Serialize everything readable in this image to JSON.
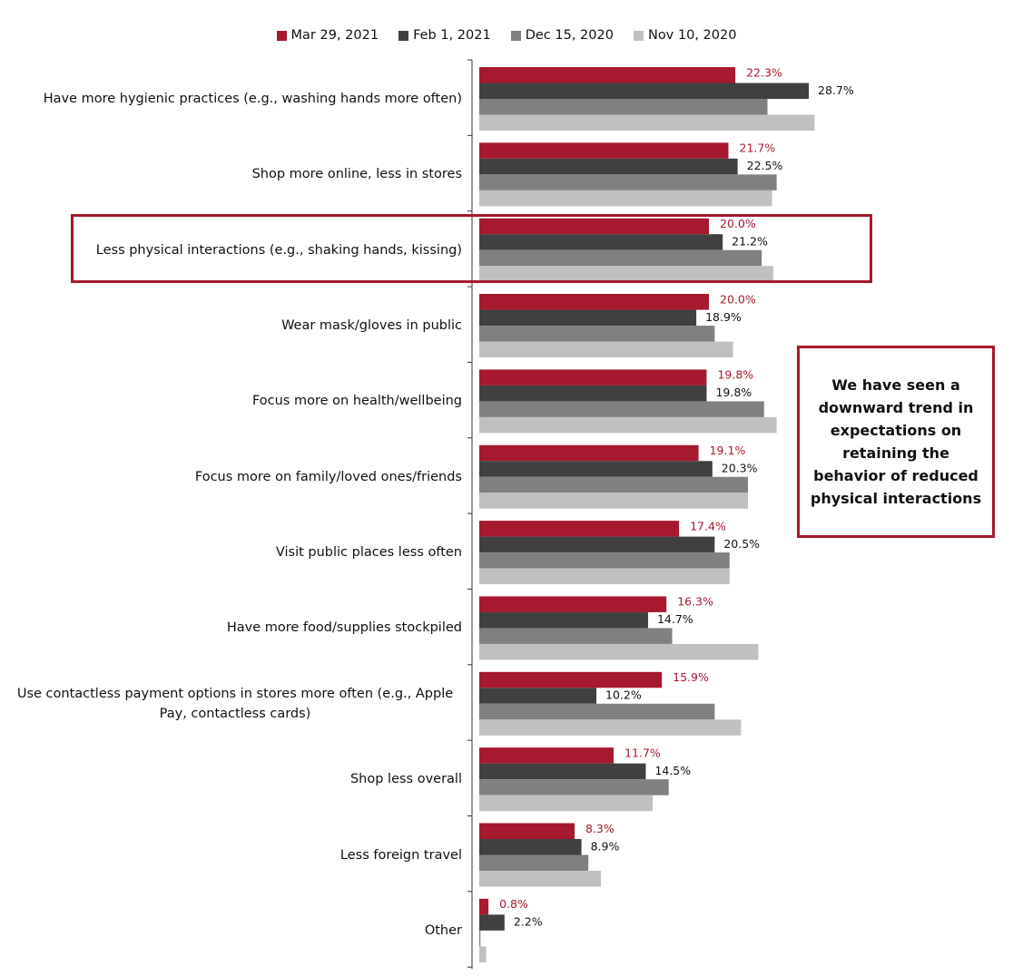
{
  "chart_data": {
    "type": "bar",
    "orientation": "horizontal",
    "categories": [
      "Have more hygienic practices (e.g., washing hands more often)",
      "Shop more online, less in stores",
      "Less physical interactions (e.g., shaking hands, kissing)",
      "Wear mask/gloves in public",
      "Focus more on health/wellbeing",
      "Focus more on family/loved ones/friends",
      "Visit public places less often",
      "Have more food/supplies stockpiled",
      "Use contactless payment options in stores more often (e.g., Apple Pay, contactless cards)",
      "Shop less overall",
      "Less foreign travel",
      "Other"
    ],
    "series": [
      {
        "name": "Mar 29, 2021",
        "color": "#a6192e",
        "values": [
          22.3,
          21.7,
          20.0,
          20.0,
          19.8,
          19.1,
          17.4,
          16.3,
          15.9,
          11.7,
          8.3,
          0.8
        ],
        "value_labels": [
          "22.3%",
          "21.7%",
          "20.0%",
          "20.0%",
          "19.8%",
          "19.1%",
          "17.4%",
          "16.3%",
          "15.9%",
          "11.7%",
          "8.3%",
          "0.8%"
        ]
      },
      {
        "name": "Feb 1, 2021",
        "color": "#404040",
        "values": [
          28.7,
          22.5,
          21.2,
          18.9,
          19.8,
          20.3,
          20.5,
          14.7,
          10.2,
          14.5,
          8.9,
          2.2
        ],
        "value_labels": [
          "28.7%",
          "22.5%",
          "21.2%",
          "18.9%",
          "19.8%",
          "20.3%",
          "20.5%",
          "14.7%",
          "10.2%",
          "14.5%",
          "8.9%",
          "2.2%"
        ]
      },
      {
        "name": "Dec 15, 2020",
        "color": "#808080",
        "values": [
          25.1,
          25.9,
          24.6,
          20.5,
          24.8,
          23.4,
          21.8,
          16.8,
          20.5,
          16.5,
          9.5,
          0.1
        ]
      },
      {
        "name": "Nov 10, 2020",
        "color": "#c0c0c0",
        "values": [
          29.2,
          25.5,
          25.6,
          22.1,
          25.9,
          23.4,
          21.8,
          24.3,
          22.8,
          15.1,
          10.6,
          0.6
        ]
      }
    ],
    "xlim": [
      0,
      40
    ],
    "annotation": "We have seen a downward trend in expectations on retaining the behavior of reduced physical interactions"
  }
}
